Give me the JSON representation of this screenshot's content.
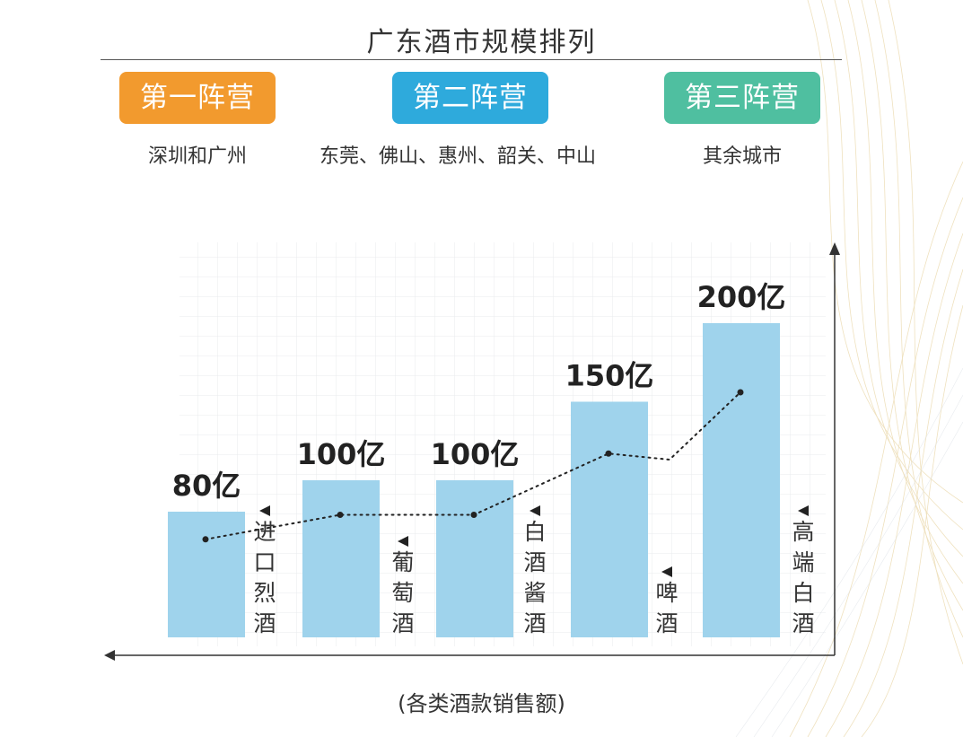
{
  "title": "广东酒市规模排列",
  "camps": [
    {
      "label": "第一阵营",
      "cities": "深圳和广州",
      "color": "#f29a2e"
    },
    {
      "label": "第二阵营",
      "cities": "东莞、佛山、惠州、韶关、中山",
      "color": "#2eaadc"
    },
    {
      "label": "第三阵营",
      "cities": "其余城市",
      "color": "#4fbfa0"
    }
  ],
  "chart_data": {
    "type": "bar",
    "categories": [
      "进口烈酒",
      "葡萄酒",
      "白酒酱酒",
      "啤酒",
      "高端白酒"
    ],
    "values": [
      80,
      100,
      100,
      150,
      200
    ],
    "value_labels": [
      "80亿",
      "100亿",
      "100亿",
      "150亿",
      "200亿"
    ],
    "xlabel": "(各类酒款销售额)",
    "ylabel": "",
    "bar_color": "#9fd3ec",
    "trend_line": "dotted"
  }
}
